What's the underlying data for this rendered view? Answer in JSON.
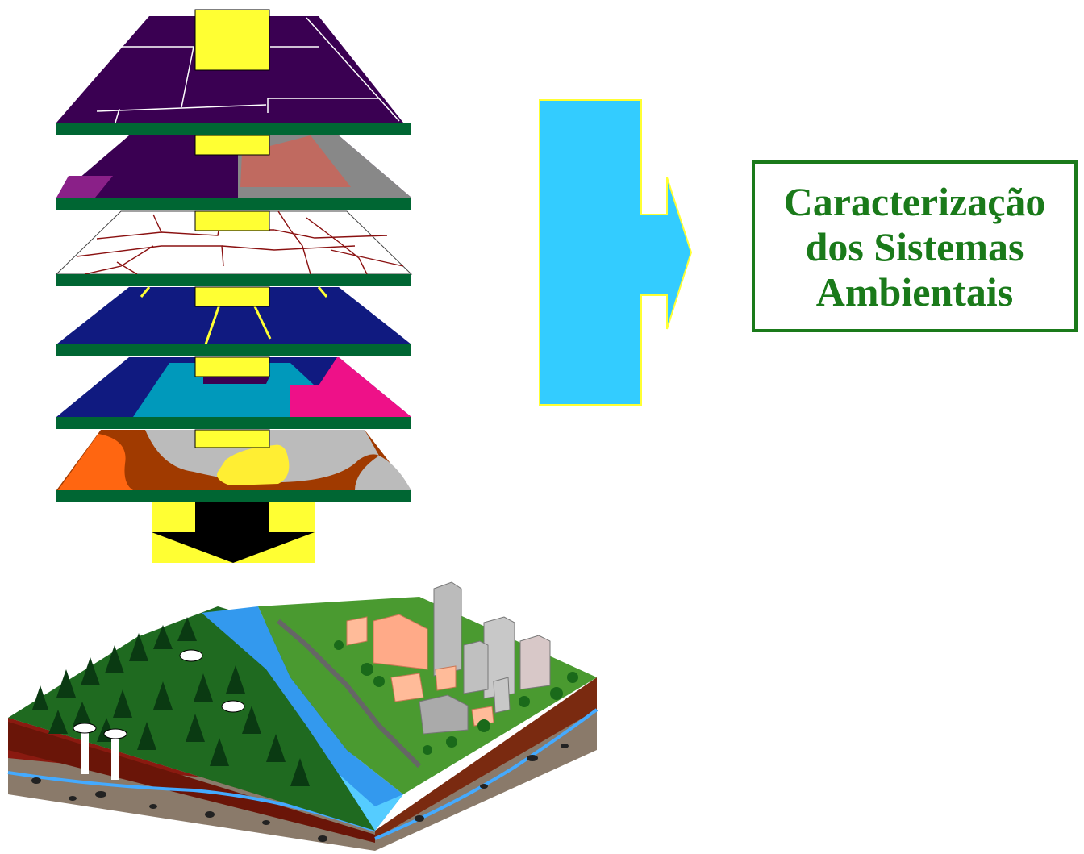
{
  "result_box": {
    "lines": [
      "Caracterização",
      "dos Sistemas",
      "Ambientais"
    ]
  },
  "layers": [
    {
      "name": "top layer",
      "plate_color": "#3a0052"
    },
    {
      "name": "land cover layer",
      "plate_color": "#3a0052"
    },
    {
      "name": "road network layer",
      "plate_color": "#ffffff"
    },
    {
      "name": "drainage layer",
      "plate_color": "#101a80"
    },
    {
      "name": "zones layer",
      "plate_color": "#101a80"
    },
    {
      "name": "soil layer",
      "plate_color": "#a03a00"
    }
  ],
  "colors": {
    "plate_edge": "#006633",
    "connector": "#ffff33",
    "big_arrow": "#33ccff",
    "result_text": "#1a7a1a"
  },
  "icons": [
    "layer-stack",
    "merge-arrow",
    "terrain-block"
  ]
}
